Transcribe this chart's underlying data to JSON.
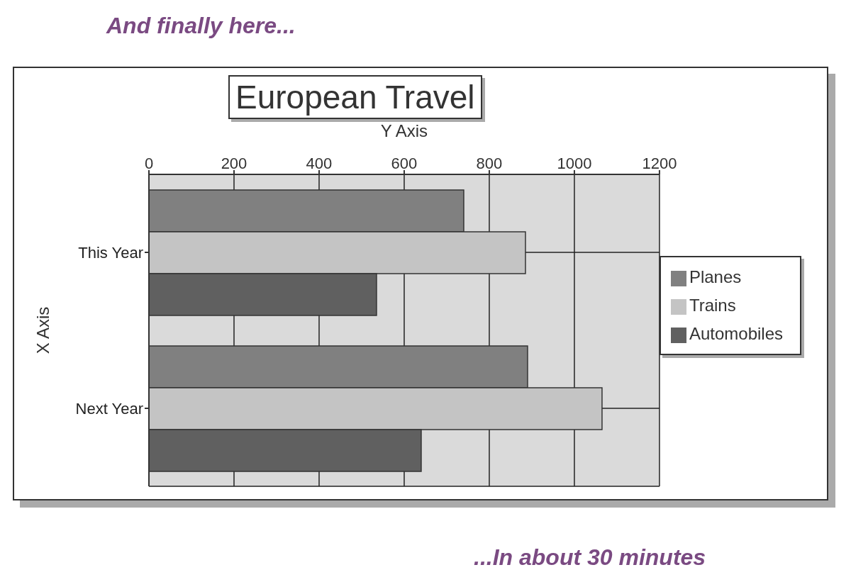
{
  "chart_data": {
    "type": "bar",
    "orientation": "horizontal",
    "title": "European Travel",
    "xlabel": "Y Axis",
    "ylabel": "X Axis",
    "annotations": [
      "And finally here...",
      "...In about 30 minutes"
    ],
    "categories": [
      "This Year",
      "Next Year"
    ],
    "series": [
      {
        "name": "Planes",
        "color": "#808080",
        "values": [
          740,
          890
        ]
      },
      {
        "name": "Trains",
        "color": "#c4c4c4",
        "values": [
          885,
          1065
        ]
      },
      {
        "name": "Automobiles",
        "color": "#606060",
        "values": [
          535,
          640
        ]
      }
    ],
    "xlim": [
      0,
      1200
    ],
    "xticks": [
      0,
      200,
      400,
      600,
      800,
      1000,
      1200
    ],
    "grid": true,
    "legend": "right"
  }
}
